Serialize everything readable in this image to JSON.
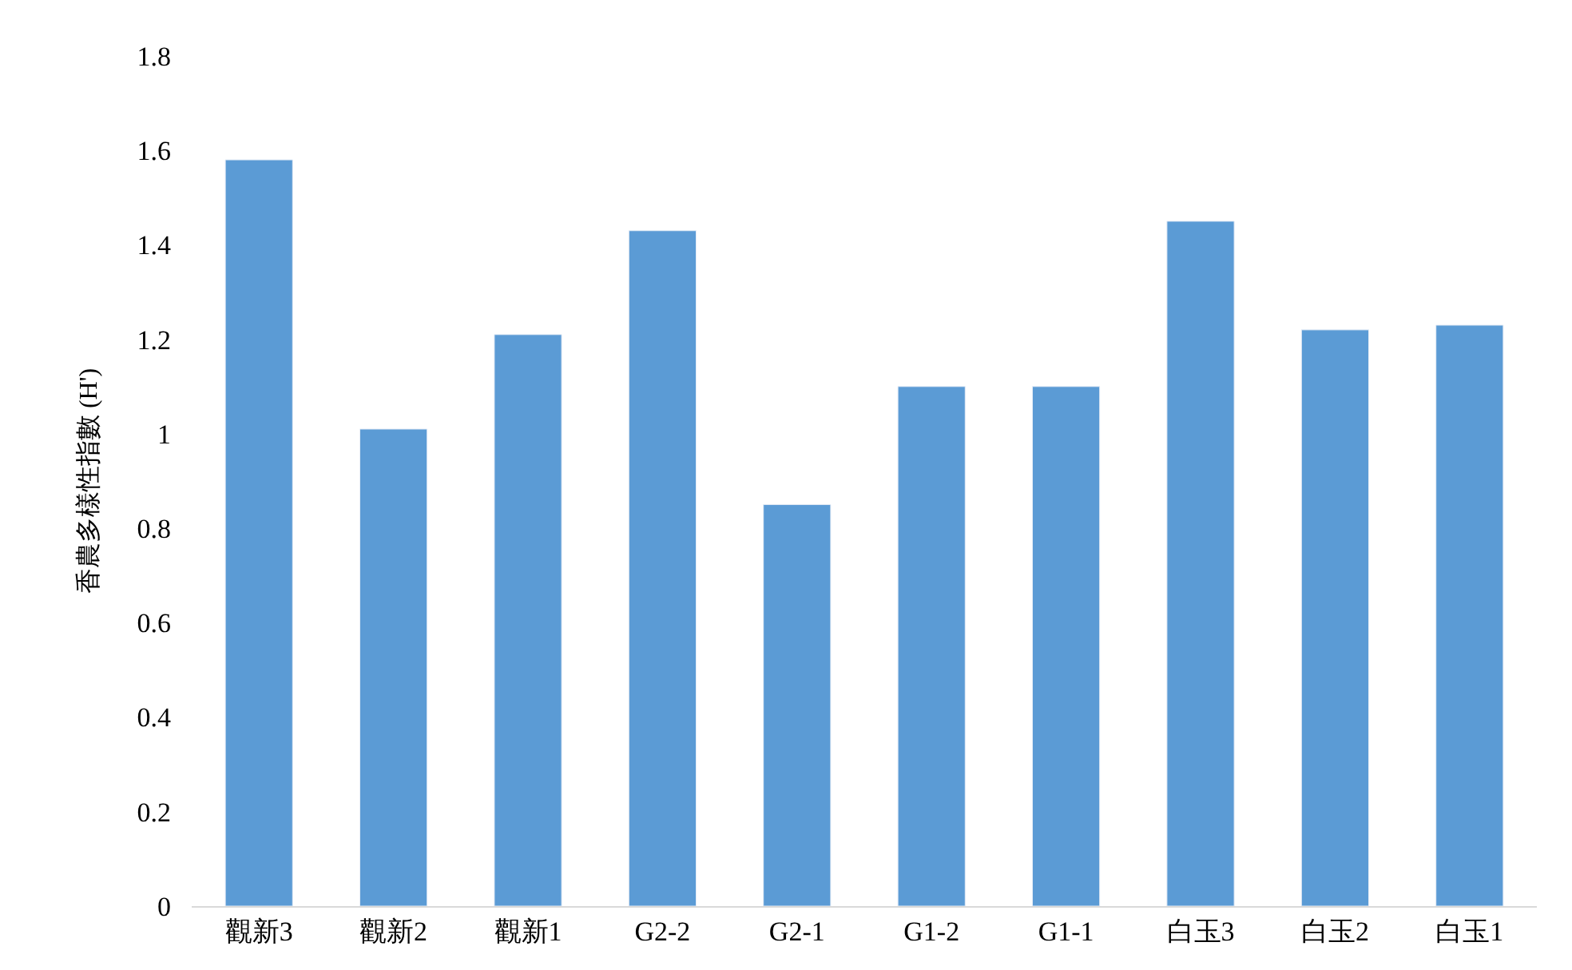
{
  "chart_data": {
    "type": "bar",
    "ylabel": "香農多樣性指數 (H')",
    "categories": [
      "觀新3",
      "觀新2",
      "觀新1",
      "G2-2",
      "G2-1",
      "G1-2",
      "G1-1",
      "白玉3",
      "白玉2",
      "白玉1"
    ],
    "values": [
      1.58,
      1.01,
      1.21,
      1.43,
      0.85,
      1.1,
      1.1,
      1.45,
      1.22,
      1.23
    ],
    "color": "#5b9bd5",
    "ylim": [
      0,
      1.8
    ],
    "yticks": [
      0,
      0.2,
      0.4,
      0.6,
      0.8,
      1,
      1.2,
      1.4,
      1.6,
      1.8
    ]
  }
}
